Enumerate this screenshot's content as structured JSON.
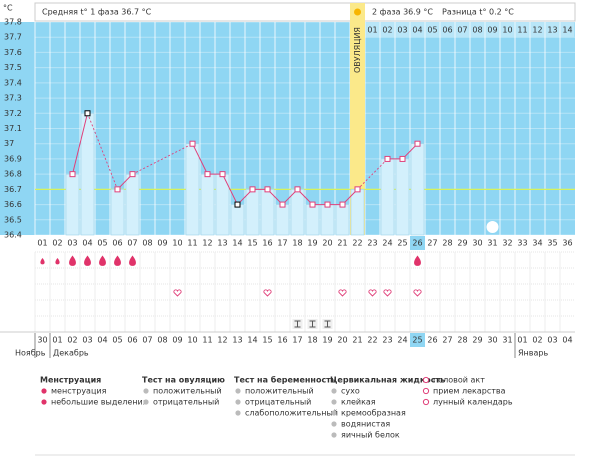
{
  "header": {
    "unit": "°C",
    "phase1": "Средняя t° 1 фаза 36.7 °C",
    "phase2": "2 фаза 36.9 °C",
    "diff": "Разница t° 0.2 °C"
  },
  "chart_data": {
    "type": "bar",
    "categories": [
      "01",
      "02",
      "03",
      "04",
      "05",
      "06",
      "07",
      "08",
      "09",
      "10",
      "11",
      "12",
      "13",
      "14",
      "15",
      "16",
      "17",
      "18",
      "19",
      "20",
      "21",
      "22",
      "23",
      "24",
      "25",
      "26",
      "27",
      "28",
      "29",
      "30",
      "31",
      "32",
      "33",
      "34",
      "35",
      "36"
    ],
    "values": [
      null,
      null,
      36.8,
      37.2,
      null,
      36.7,
      36.8,
      null,
      null,
      null,
      37,
      36.8,
      36.8,
      36.6,
      36.7,
      36.7,
      36.6,
      36.7,
      36.6,
      36.6,
      36.6,
      36.7,
      null,
      36.9,
      36.9,
      37,
      null,
      null,
      null,
      null,
      null,
      null,
      null,
      null,
      null,
      null
    ],
    "ylim": [
      36.4,
      37.8
    ],
    "yticks": [
      36.4,
      36.5,
      36.6,
      36.7,
      36.8,
      36.9,
      37,
      37.1,
      37.2,
      37.3,
      37.4,
      37.5,
      37.6,
      37.7,
      37.8
    ],
    "coverline": 36.7,
    "bar_color": "#d3f0fc",
    "line_color": "#e0407a",
    "background": "#8fd6f3",
    "coverline_color": "#d6f25a",
    "excluded_days": [
      "04",
      "14"
    ],
    "ovulation_day": "22",
    "ovulation_label": "ОВУЛЯЦИЯ",
    "post_ovulation_days": [
      "01",
      "02",
      "03",
      "04",
      "05",
      "06",
      "07",
      "08",
      "09",
      "10",
      "11",
      "12",
      "13",
      "14"
    ],
    "moon_day": "31",
    "menstruation": [
      "light",
      "light",
      "heavy",
      "heavy",
      "heavy",
      "heavy",
      "heavy",
      null,
      null,
      null,
      null,
      null,
      null,
      null,
      null,
      null,
      null,
      null,
      null,
      null,
      null,
      null,
      null,
      null,
      null,
      "heavy",
      null,
      null,
      null,
      null,
      null,
      null,
      null,
      null,
      null,
      null
    ],
    "intercourse_days": [
      "10",
      "16",
      "21",
      "23",
      "24",
      "26"
    ],
    "mucus_sticky_days": [
      "18",
      "19",
      "20"
    ],
    "dates": [
      "30",
      "01",
      "02",
      "03",
      "04",
      "05",
      "06",
      "07",
      "08",
      "09",
      "10",
      "11",
      "12",
      "13",
      "14",
      "15",
      "16",
      "17",
      "18",
      "19",
      "20",
      "21",
      "22",
      "23",
      "24",
      "25",
      "26",
      "27",
      "28",
      "29",
      "30",
      "31",
      "01",
      "02",
      "03",
      "04"
    ],
    "weekend": [
      false,
      true,
      true,
      false,
      false,
      false,
      false,
      false,
      true,
      true,
      false,
      false,
      false,
      false,
      false,
      true,
      true,
      false,
      false,
      false,
      false,
      false,
      true,
      true,
      false,
      false,
      false,
      false,
      false,
      true,
      true,
      false,
      false,
      false,
      false,
      false
    ],
    "today_day": "26",
    "months": [
      {
        "label": "Ноябрь",
        "day": "01"
      },
      {
        "label": "Декабрь",
        "day": "02"
      },
      {
        "label": "Январь",
        "day": "33"
      }
    ]
  },
  "legend": [
    {
      "title": "Менструация",
      "items": [
        "менструация",
        "небольшие выделения"
      ]
    },
    {
      "title": "Тест на овуляцию",
      "items": [
        "положительный",
        "отрицательный"
      ]
    },
    {
      "title": "Тест на беременность",
      "items": [
        "положительный",
        "отрицательный",
        "слабоположительный"
      ]
    },
    {
      "title": "Цервикальная жидкость",
      "items": [
        "сухо",
        "клейкая",
        "кремообразная",
        "водянистая",
        "яичный белок"
      ]
    },
    {
      "items": [
        "половой акт",
        "прием лекарства",
        "лунный календарь"
      ]
    }
  ]
}
